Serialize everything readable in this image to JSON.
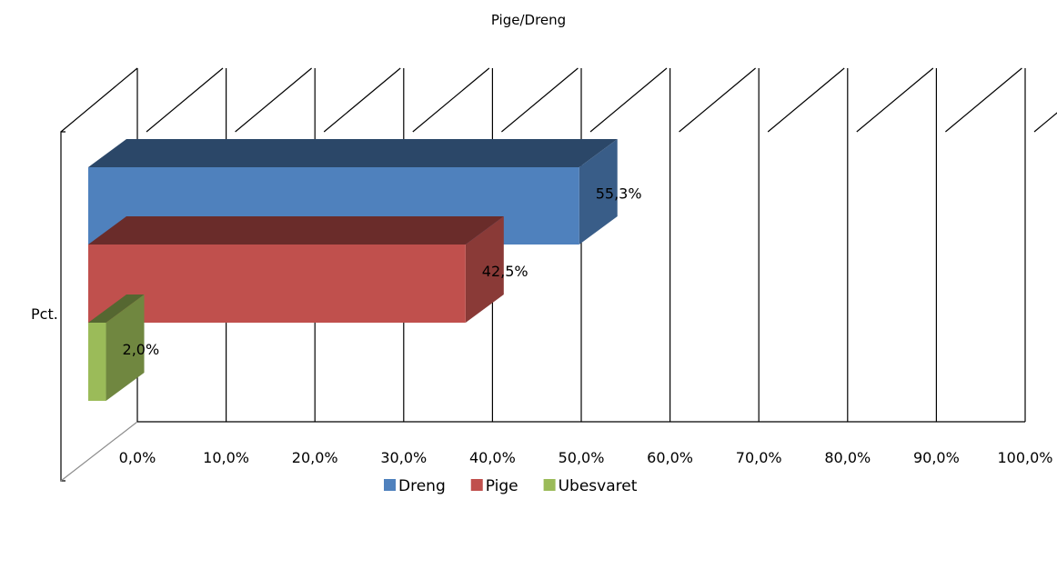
{
  "chart_data": {
    "type": "bar",
    "orientation": "horizontal",
    "style": "3d",
    "title": "Pige/Dreng",
    "ylabel": "Pct.",
    "xlabel": "",
    "xlim": [
      0,
      100
    ],
    "ticks": [
      "0,0%",
      "10,0%",
      "20,0%",
      "30,0%",
      "40,0%",
      "50,0%",
      "60,0%",
      "70,0%",
      "80,0%",
      "90,0%",
      "100,0%"
    ],
    "grid": true,
    "legend_position": "bottom",
    "series": [
      {
        "name": "Dreng",
        "value": 55.3,
        "label": "55,3%",
        "color": "#4F81BD"
      },
      {
        "name": "Pige",
        "value": 42.5,
        "label": "42,5%",
        "color": "#C0504D"
      },
      {
        "name": "Ubesvaret",
        "value": 2.0,
        "label": "2,0%",
        "color": "#9BBB59"
      }
    ]
  }
}
